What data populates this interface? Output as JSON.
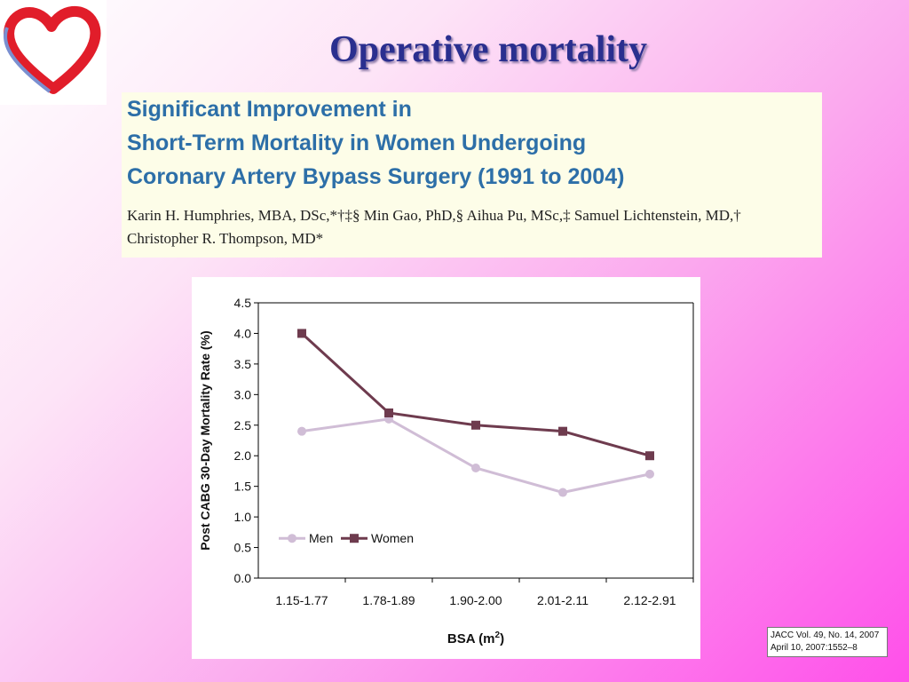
{
  "slide": {
    "title": "Operative mortality"
  },
  "paper": {
    "title_lines": [
      "Significant Improvement in",
      "Short-Term Mortality in Women Undergoing",
      "Coronary Artery Bypass Surgery (1991 to 2004)"
    ],
    "author_lines": [
      "Karin H. Humphries, MBA, DSc,*†‡§ Min Gao, PhD,§ Aihua Pu, MSc,‡ Samuel Lichtenstein, MD,†",
      "Christopher R. Thompson, MD*"
    ]
  },
  "citation": {
    "lines": [
      "JACC Vol. 49, No. 14, 2007",
      "April 10, 2007:1552–8"
    ]
  },
  "colors": {
    "title": "#2a2f8f",
    "paper_title": "#2d6fa8",
    "men": "#d0bdd6",
    "women": "#6e3b4e"
  },
  "chart_data": {
    "type": "line",
    "title": "",
    "xlabel": "BSA (m2)",
    "ylabel": "Post CABG 30-Day Mortality Rate (%)",
    "categories": [
      "1.15-1.77",
      "1.78-1.89",
      "1.90-2.00",
      "2.01-2.11",
      "2.12-2.91"
    ],
    "ylim": [
      0,
      4.5
    ],
    "yticks": [
      "0.0",
      "0.5",
      "1.0",
      "1.5",
      "2.0",
      "2.5",
      "3.0",
      "3.5",
      "4.0",
      "4.5"
    ],
    "grid": false,
    "legend_position": "bottom-left",
    "series": [
      {
        "name": "Men",
        "values": [
          2.4,
          2.6,
          1.8,
          1.4,
          1.7
        ],
        "marker": "circle"
      },
      {
        "name": "Women",
        "values": [
          4.0,
          2.7,
          2.5,
          2.4,
          2.0
        ],
        "marker": "square"
      }
    ]
  }
}
